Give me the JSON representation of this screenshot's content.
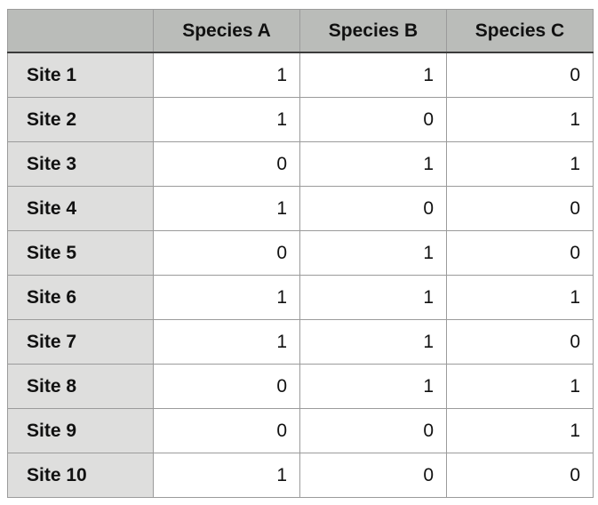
{
  "chart_data": {
    "type": "table",
    "title": "",
    "columns": [
      "",
      "Species A",
      "Species B",
      "Species C"
    ],
    "row_labels": [
      "Site 1",
      "Site 2",
      "Site 3",
      "Site 4",
      "Site 5",
      "Site 6",
      "Site 7",
      "Site 8",
      "Site 9",
      "Site 10"
    ],
    "rows": [
      [
        1,
        1,
        0
      ],
      [
        1,
        0,
        1
      ],
      [
        0,
        1,
        1
      ],
      [
        1,
        0,
        0
      ],
      [
        0,
        1,
        0
      ],
      [
        1,
        1,
        1
      ],
      [
        1,
        1,
        0
      ],
      [
        0,
        1,
        1
      ],
      [
        0,
        0,
        1
      ],
      [
        1,
        0,
        0
      ]
    ]
  },
  "colors": {
    "header_bg": "#babcb9",
    "row_header_bg": "#dededd",
    "grid_border": "#9b9b9b",
    "header_rule": "#3b3b3b",
    "text": "#111111",
    "background": "#ffffff"
  }
}
